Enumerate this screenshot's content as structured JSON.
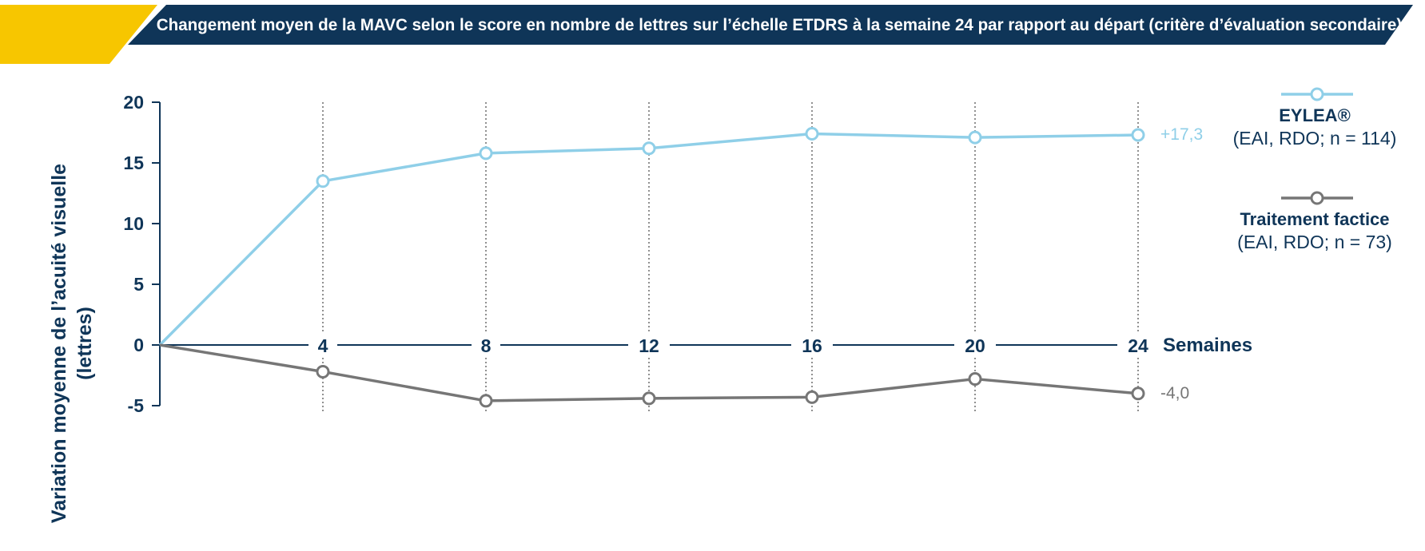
{
  "header": {
    "title": "Changement moyen de la MAVC selon le score en nombre de lettres sur l’échelle ETDRS à la semaine 24 par rapport au départ (critère d’évaluation secondaire)"
  },
  "colors": {
    "banner_navy": "#0f3558",
    "banner_yellow": "#f7c600",
    "eylea": "#8fcfe8",
    "sham": "#767676",
    "text": "#0f3558"
  },
  "chart_data": {
    "type": "line",
    "ylabel": "Variation moyenne de l’acuité visuelle (lettres)",
    "xlabel": "Semaines",
    "x": [
      0,
      4,
      8,
      12,
      16,
      20,
      24
    ],
    "x_tick_labels": [
      "4",
      "8",
      "12",
      "16",
      "20",
      "24"
    ],
    "y_tick_labels": [
      "20",
      "15",
      "10",
      "5",
      "0",
      "-5"
    ],
    "y_ticks": [
      20,
      15,
      10,
      5,
      0,
      -5
    ],
    "ylim": [
      -5,
      20
    ],
    "grid": "vertical dotted lines at each week tick",
    "legend_position": "right",
    "series": [
      {
        "name": "EYLEA®",
        "subtitle": "(EAI, RDO; n = 114)",
        "values": [
          0,
          13.5,
          15.8,
          16.2,
          17.4,
          17.1,
          17.3
        ],
        "end_label": "+17,3"
      },
      {
        "name": "Traitement factice",
        "subtitle": "(EAI, RDO; n = 73)",
        "values": [
          0,
          -2.2,
          -4.6,
          -4.4,
          -4.3,
          -2.8,
          -4.0
        ],
        "end_label": "-4,0"
      }
    ]
  }
}
